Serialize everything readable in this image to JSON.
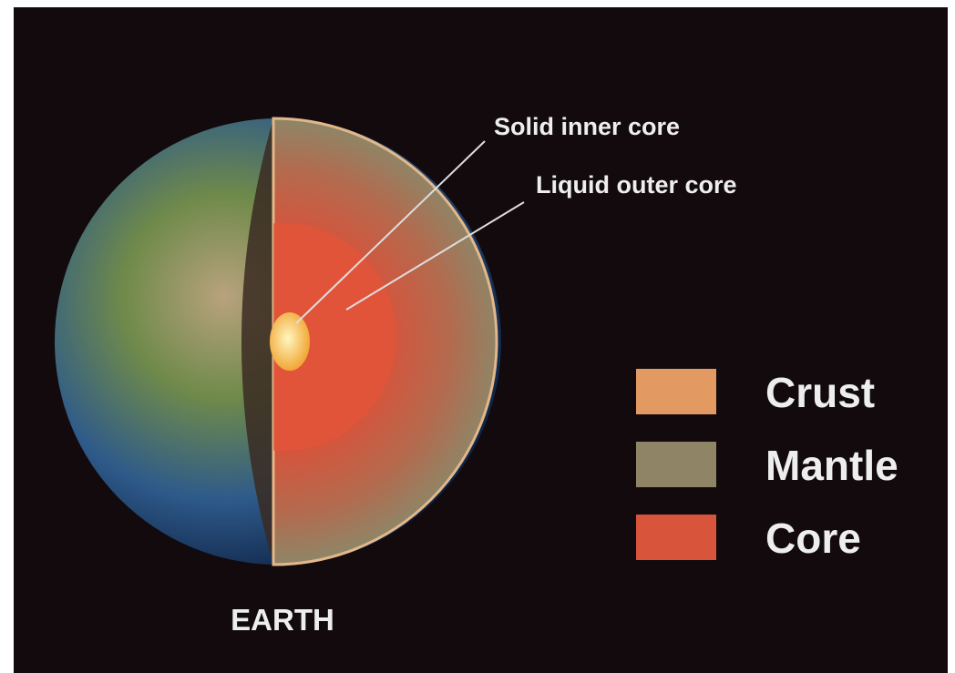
{
  "annotations": [
    "Solid inner core",
    "Liquid outer core"
  ],
  "legend": [
    {
      "label": "Crust",
      "color": "#e39a62"
    },
    {
      "label": "Mantle",
      "color": "#8f8566"
    },
    {
      "label": "Core",
      "color": "#d8543a"
    }
  ],
  "caption": "EARTH"
}
